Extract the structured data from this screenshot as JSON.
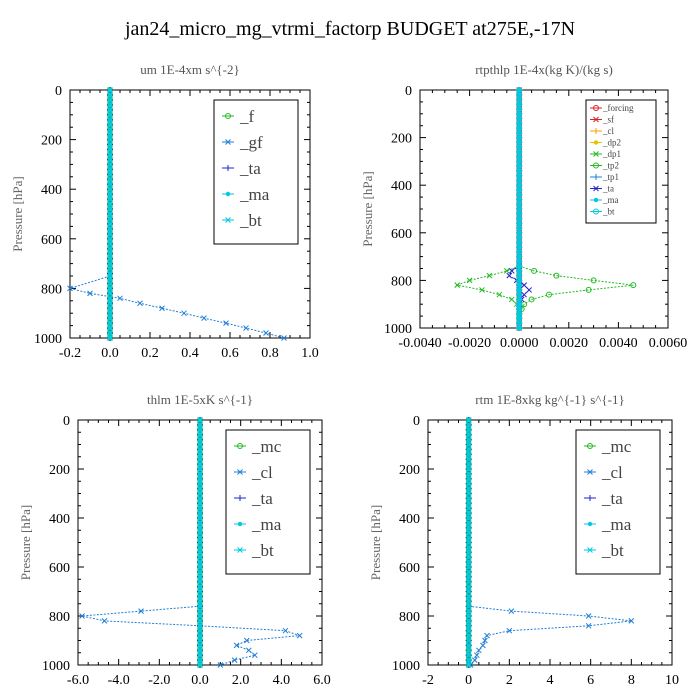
{
  "figure_title": "jan24_micro_mg_vtrmi_factorp  BUDGET at275E,-17N",
  "colors": {
    "green": "#22bb22",
    "blue": "#1f7fd8",
    "navy": "#2222cc",
    "cyan": "#00c8e0",
    "red": "#dd2222",
    "orange": "#ff9900",
    "yellow": "#e8c000"
  },
  "chart_data": [
    {
      "type": "line",
      "title": "um  1E-4xm s^{-2}",
      "ylabel": "Pressure [hPa]",
      "xlim": [
        -0.2,
        1.0
      ],
      "ylim": [
        1000,
        0
      ],
      "x_ticks": [
        "-0.2",
        "0.0",
        "0.2",
        "0.4",
        "0.6",
        "0.8",
        "1.0"
      ],
      "y_ticks": [
        "0",
        "200",
        "400",
        "600",
        "800",
        "1000"
      ],
      "legend_position": "top-right",
      "series": [
        {
          "name": "_f",
          "color": "green",
          "y": [
            0,
            1000
          ],
          "x": [
            0,
            0
          ]
        },
        {
          "name": "_gf",
          "color": "blue",
          "y": [
            750,
            800,
            820,
            840,
            860,
            880,
            900,
            920,
            940,
            960,
            980,
            1000
          ],
          "x": [
            0.0,
            -0.2,
            -0.1,
            0.05,
            0.15,
            0.26,
            0.37,
            0.47,
            0.58,
            0.68,
            0.78,
            0.87
          ]
        },
        {
          "name": "_ta",
          "color": "navy",
          "y": [
            0,
            1000
          ],
          "x": [
            0,
            0
          ]
        },
        {
          "name": "_ma",
          "color": "cyan",
          "y": [
            0,
            1000
          ],
          "x": [
            0,
            0
          ]
        },
        {
          "name": "_bt",
          "color": "cyan",
          "y": [
            0,
            1000
          ],
          "x": [
            0,
            0
          ]
        }
      ]
    },
    {
      "type": "line",
      "title": "rtpthlp  1E-4x(kg K)/(kg s)",
      "ylabel": "Pressure [hPa]",
      "xlim": [
        -0.004,
        0.006
      ],
      "ylim": [
        1000,
        0
      ],
      "x_ticks": [
        "-0.0040",
        "-0.0020",
        "0.0000",
        "0.0020",
        "0.0040",
        "0.0060"
      ],
      "y_ticks": [
        "0",
        "200",
        "400",
        "600",
        "800",
        "1000"
      ],
      "legend_position": "top-right",
      "series": [
        {
          "name": "_forcing",
          "color": "red",
          "y": [
            0,
            1000
          ],
          "x": [
            0,
            0
          ]
        },
        {
          "name": "_sf",
          "color": "red",
          "y": [
            0,
            1000
          ],
          "x": [
            0,
            0
          ]
        },
        {
          "name": "_cl",
          "color": "orange",
          "y": [
            0,
            1000
          ],
          "x": [
            0,
            0
          ]
        },
        {
          "name": "_dp2",
          "color": "yellow",
          "y": [
            0,
            1000
          ],
          "x": [
            0,
            0
          ]
        },
        {
          "name": "_dp1",
          "color": "green",
          "y": [
            740,
            760,
            780,
            800,
            820,
            840,
            860,
            880,
            900,
            920,
            940,
            960
          ],
          "x": [
            0.0,
            -0.0005,
            -0.0012,
            -0.002,
            -0.0025,
            -0.0015,
            -0.0008,
            -0.0003,
            -0.0001,
            0.0,
            0.0,
            0.0
          ]
        },
        {
          "name": "_tp2",
          "color": "green",
          "y": [
            740,
            760,
            780,
            800,
            820,
            840,
            860,
            880,
            900,
            920,
            940,
            960
          ],
          "x": [
            0.0,
            0.0006,
            0.0015,
            0.003,
            0.0046,
            0.0028,
            0.0012,
            0.0005,
            0.0002,
            0.0001,
            0.0,
            0.0
          ]
        },
        {
          "name": "_tp1",
          "color": "blue",
          "y": [
            0,
            1000
          ],
          "x": [
            0,
            0
          ]
        },
        {
          "name": "_ta",
          "color": "navy",
          "y": [
            740,
            760,
            780,
            800,
            820,
            840,
            860,
            880,
            900
          ],
          "x": [
            0.0,
            -0.0003,
            -0.0004,
            -0.0001,
            0.0002,
            0.0004,
            0.0002,
            0.0001,
            0.0
          ]
        },
        {
          "name": "_ma",
          "color": "cyan",
          "y": [
            0,
            1000
          ],
          "x": [
            0,
            0
          ]
        },
        {
          "name": "_bt",
          "color": "cyan",
          "y": [
            0,
            1000
          ],
          "x": [
            0,
            0
          ]
        }
      ]
    },
    {
      "type": "line",
      "title": "thlm  1E-5xK s^{-1}",
      "ylabel": "Pressure [hPa]",
      "xlim": [
        -6.0,
        6.0
      ],
      "ylim": [
        1000,
        0
      ],
      "x_ticks": [
        "-6.0",
        "-4.0",
        "-2.0",
        "0.0",
        "2.0",
        "4.0",
        "6.0"
      ],
      "y_ticks": [
        "0",
        "200",
        "400",
        "600",
        "800",
        "1000"
      ],
      "legend_position": "top-right",
      "series": [
        {
          "name": "_mc",
          "color": "green",
          "y": [
            0,
            1000
          ],
          "x": [
            0,
            0
          ]
        },
        {
          "name": "_cl",
          "color": "blue",
          "y": [
            760,
            780,
            800,
            820,
            840,
            860,
            880,
            900,
            920,
            940,
            960,
            980,
            1000
          ],
          "x": [
            0.0,
            -2.9,
            -5.8,
            -4.7,
            0.0,
            4.2,
            4.9,
            2.3,
            1.8,
            2.4,
            2.7,
            1.7,
            1.0
          ]
        },
        {
          "name": "_ta",
          "color": "navy",
          "y": [
            0,
            1000
          ],
          "x": [
            0,
            0
          ]
        },
        {
          "name": "_ma",
          "color": "cyan",
          "y": [
            0,
            1000
          ],
          "x": [
            0,
            0
          ]
        },
        {
          "name": "_bt",
          "color": "cyan",
          "y": [
            0,
            1000
          ],
          "x": [
            0,
            0
          ]
        }
      ]
    },
    {
      "type": "line",
      "title": "rtm  1E-8xkg kg^{-1} s^{-1}",
      "ylabel": "Pressure [hPa]",
      "xlim": [
        -2,
        10
      ],
      "ylim": [
        1000,
        0
      ],
      "x_ticks": [
        "-2",
        "0",
        "2",
        "4",
        "6",
        "8",
        "10"
      ],
      "y_ticks": [
        "0",
        "200",
        "400",
        "600",
        "800",
        "1000"
      ],
      "legend_position": "top-right",
      "series": [
        {
          "name": "_mc",
          "color": "green",
          "y": [
            0,
            1000
          ],
          "x": [
            0,
            0
          ]
        },
        {
          "name": "_cl",
          "color": "blue",
          "y": [
            760,
            780,
            800,
            820,
            840,
            860,
            880,
            900,
            920,
            940,
            960,
            980,
            1000
          ],
          "x": [
            0.0,
            2.1,
            5.9,
            8.0,
            5.9,
            2.0,
            0.9,
            0.8,
            0.7,
            0.5,
            0.4,
            0.3,
            0.1
          ]
        },
        {
          "name": "_ta",
          "color": "navy",
          "y": [
            0,
            1000
          ],
          "x": [
            0,
            0
          ]
        },
        {
          "name": "_ma",
          "color": "cyan",
          "y": [
            0,
            1000
          ],
          "x": [
            0,
            0
          ]
        },
        {
          "name": "_bt",
          "color": "cyan",
          "y": [
            0,
            1000
          ],
          "x": [
            0,
            0
          ]
        }
      ]
    }
  ]
}
